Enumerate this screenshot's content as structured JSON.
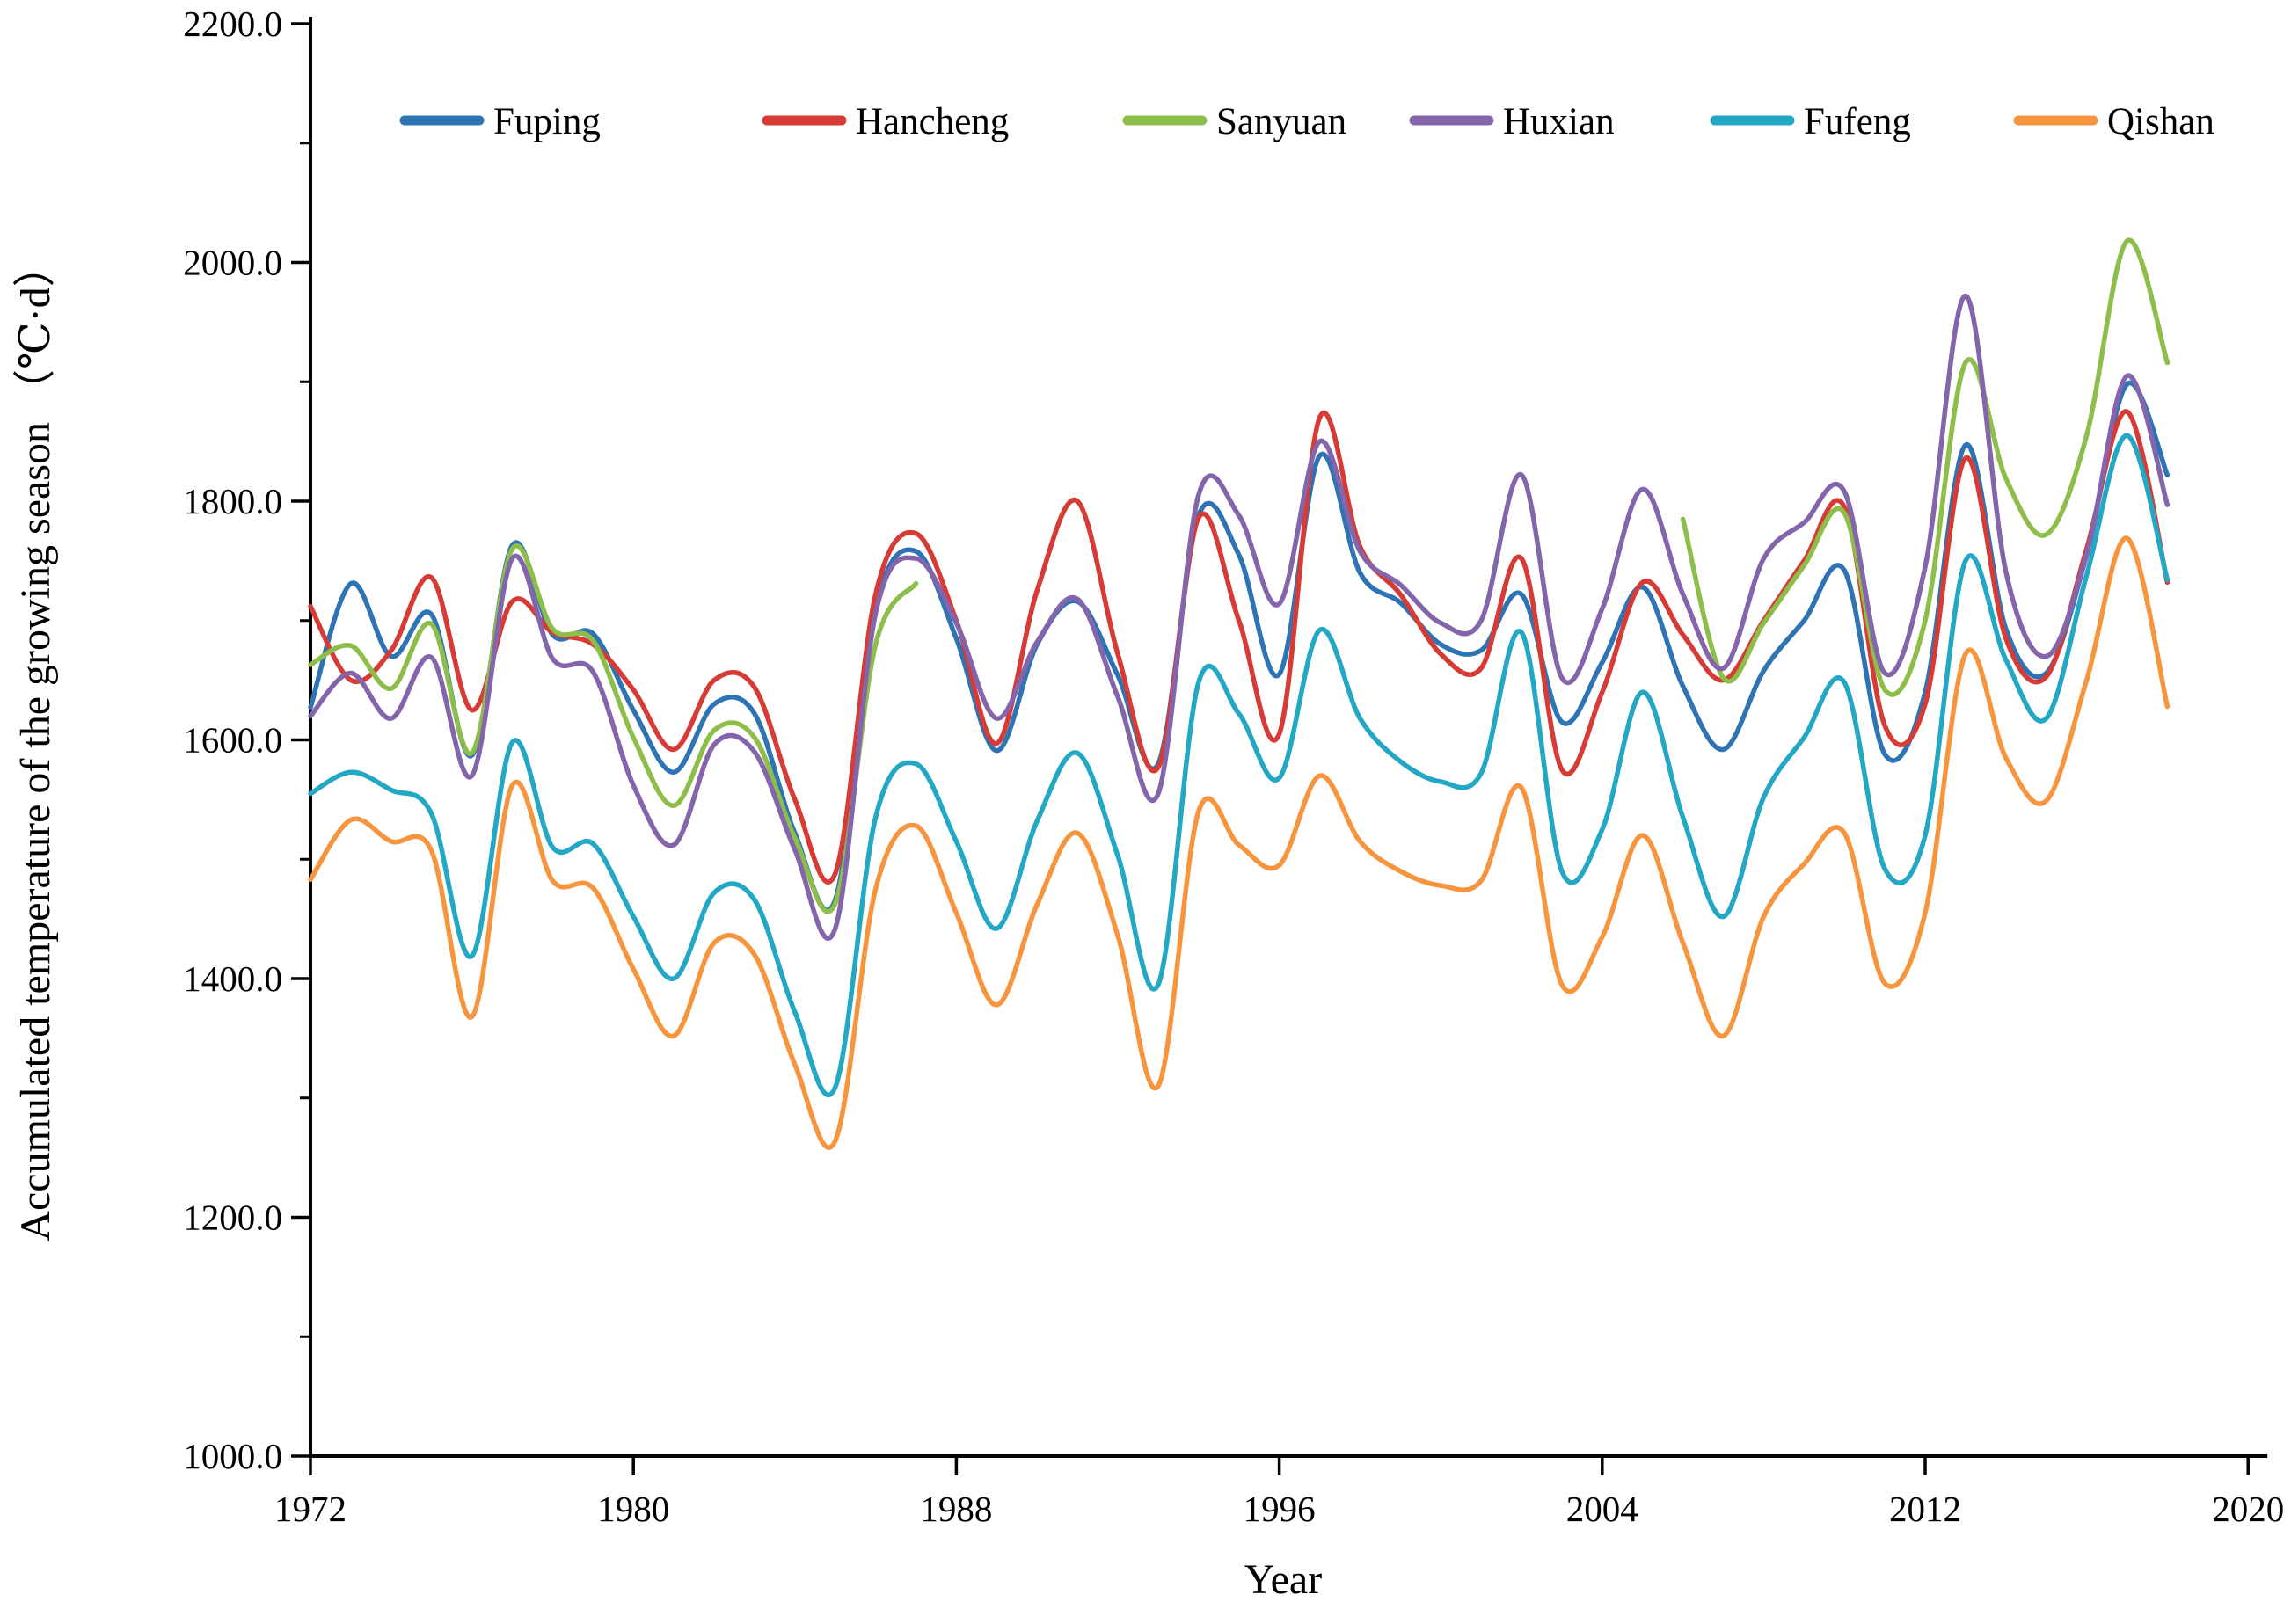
{
  "figure": {
    "xlabel": "Year",
    "ylabel": "Accumulated temperature of the growing season （℃·d）"
  },
  "axis": {
    "y_tick_labels": [
      "2200.0",
      "2000.0",
      "1800.0",
      "1600.0",
      "1400.0",
      "1200.0",
      "1000.0"
    ],
    "x_tick_labels": [
      "1972",
      "1980",
      "1988",
      "1996",
      "2004",
      "2012",
      "2020"
    ],
    "axis_color": "#000000"
  },
  "chart_data": {
    "type": "line",
    "title": "",
    "xlabel": "Year",
    "ylabel": "Accumulated temperature of the growing season （℃·d）",
    "xlim": [
      1972,
      2020
    ],
    "ylim": [
      1000,
      2200
    ],
    "y_tick_step": 200,
    "y_minor_tick_step": 100,
    "x_tick_step": 8,
    "grid": false,
    "legend_position": "top",
    "x": [
      1972,
      1973,
      1974,
      1975,
      1976,
      1977,
      1978,
      1979,
      1980,
      1981,
      1982,
      1983,
      1984,
      1985,
      1986,
      1987,
      1988,
      1989,
      1990,
      1991,
      1992,
      1993,
      1994,
      1995,
      1996,
      1997,
      1998,
      1999,
      2000,
      2001,
      2002,
      2003,
      2004,
      2005,
      2006,
      2007,
      2008,
      2009,
      2010,
      2011,
      2012,
      2013,
      2014,
      2015,
      2016,
      2017,
      2018
    ],
    "series": [
      {
        "name": "Fuping",
        "color": "#2E74B5",
        "values": [
          1627,
          1731,
          1670,
          1705,
          1587,
          1763,
          1688,
          1689,
          1625,
          1573,
          1630,
          1622,
          1522,
          1466,
          1710,
          1758,
          1685,
          1591,
          1680,
          1716,
          1654,
          1580,
          1788,
          1755,
          1655,
          1838,
          1740,
          1715,
          1680,
          1675,
          1722,
          1615,
          1665,
          1728,
          1645,
          1592,
          1658,
          1700,
          1742,
          1588,
          1640,
          1847,
          1693,
          1656,
          1755,
          1898,
          1822
        ]
      },
      {
        "name": "Hancheng",
        "color": "#D63B35",
        "values": [
          1712,
          1650,
          1675,
          1736,
          1625,
          1716,
          1690,
          1680,
          1642,
          1592,
          1650,
          1644,
          1550,
          1488,
          1722,
          1773,
          1700,
          1597,
          1725,
          1800,
          1672,
          1577,
          1786,
          1700,
          1605,
          1870,
          1762,
          1722,
          1672,
          1660,
          1752,
          1575,
          1640,
          1732,
          1688,
          1650,
          1700,
          1750,
          1795,
          1612,
          1630,
          1836,
          1685,
          1653,
          1760,
          1875,
          1732
        ]
      },
      {
        "name": "Sanyuan",
        "color": "#8DBE4A",
        "values": [
          1663,
          1679,
          1643,
          1697,
          1589,
          1760,
          1693,
          1683,
          1602,
          1545,
          1608,
          1602,
          1518,
          1463,
          1680,
          1731,
          null,
          null,
          null,
          null,
          null,
          null,
          null,
          null,
          null,
          null,
          null,
          null,
          null,
          null,
          null,
          null,
          null,
          null,
          1785,
          1652,
          1698,
          1746,
          1790,
          1642,
          1700,
          1916,
          1819,
          1772,
          1855,
          2018,
          1916
        ]
      },
      {
        "name": "Huxian",
        "color": "#8465AB",
        "values": [
          1620,
          1656,
          1618,
          1669,
          1570,
          1752,
          1668,
          1657,
          1562,
          1512,
          1596,
          1590,
          1508,
          1442,
          1706,
          1752,
          1698,
          1618,
          1682,
          1718,
          1636,
          1555,
          1805,
          1788,
          1714,
          1850,
          1758,
          1730,
          1698,
          1700,
          1822,
          1652,
          1710,
          1810,
          1722,
          1660,
          1752,
          1782,
          1808,
          1656,
          1745,
          1972,
          1741,
          1670,
          1755,
          1905,
          1797
        ]
      },
      {
        "name": "Fufeng",
        "color": "#22A7C5",
        "values": [
          1555,
          1573,
          1558,
          1538,
          1419,
          1598,
          1510,
          1513,
          1452,
          1400,
          1472,
          1466,
          1372,
          1309,
          1535,
          1580,
          1515,
          1442,
          1532,
          1589,
          1503,
          1395,
          1648,
          1622,
          1568,
          1692,
          1618,
          1582,
          1565,
          1572,
          1690,
          1490,
          1525,
          1640,
          1535,
          1452,
          1552,
          1602,
          1648,
          1492,
          1520,
          1750,
          1667,
          1618,
          1738,
          1855,
          1734
        ]
      },
      {
        "name": "Qishan",
        "color": "#F7953F",
        "values": [
          1483,
          1533,
          1515,
          1507,
          1368,
          1562,
          1482,
          1476,
          1408,
          1352,
          1430,
          1420,
          1328,
          1264,
          1475,
          1528,
          1455,
          1378,
          1462,
          1522,
          1436,
          1310,
          1540,
          1512,
          1495,
          1570,
          1515,
          1490,
          1478,
          1482,
          1560,
          1395,
          1435,
          1520,
          1430,
          1352,
          1452,
          1496,
          1522,
          1396,
          1455,
          1672,
          1585,
          1549,
          1650,
          1769,
          1628
        ]
      }
    ]
  }
}
